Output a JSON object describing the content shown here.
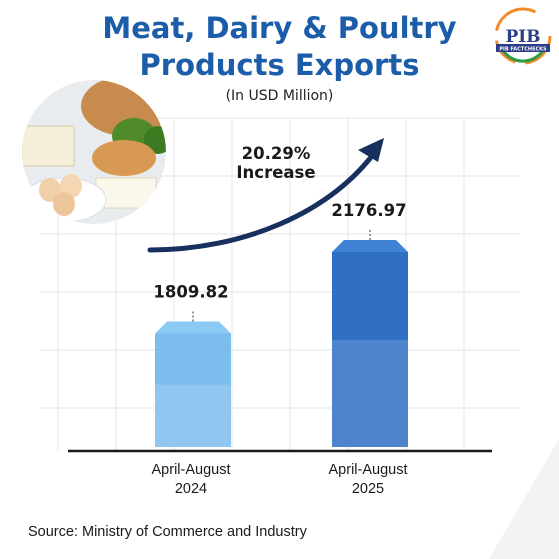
{
  "header": {
    "title_line1": "Meat, Dairy & Poultry",
    "title_line2": "Products Exports",
    "subtitle": "(In USD Million)"
  },
  "logo": {
    "text": "PIB",
    "band_text": "PIB FACTCHECKS",
    "icon": "pib-logo-icon"
  },
  "illustration": {
    "icon": "dairy-food-icon"
  },
  "chart_data": {
    "type": "bar",
    "categories": [
      "April-August 2024",
      "April-August 2025"
    ],
    "category_lines": [
      [
        "April-August",
        "2024"
      ],
      [
        "April-August",
        "2025"
      ]
    ],
    "values": [
      1809.82,
      2176.97
    ],
    "value_labels": [
      "1809.82",
      "2176.97"
    ],
    "annotation": {
      "line1": "20.29%",
      "line2": "Increase"
    },
    "colors": {
      "bar_2024": "#6fb6ec",
      "bar_2025": "#2f6fc4",
      "arrow": "#17305e",
      "grid": "#e2e6ea",
      "title": "#1c5daa"
    },
    "grid": true
  },
  "footer": {
    "source": "Source: Ministry of Commerce and Industry"
  }
}
